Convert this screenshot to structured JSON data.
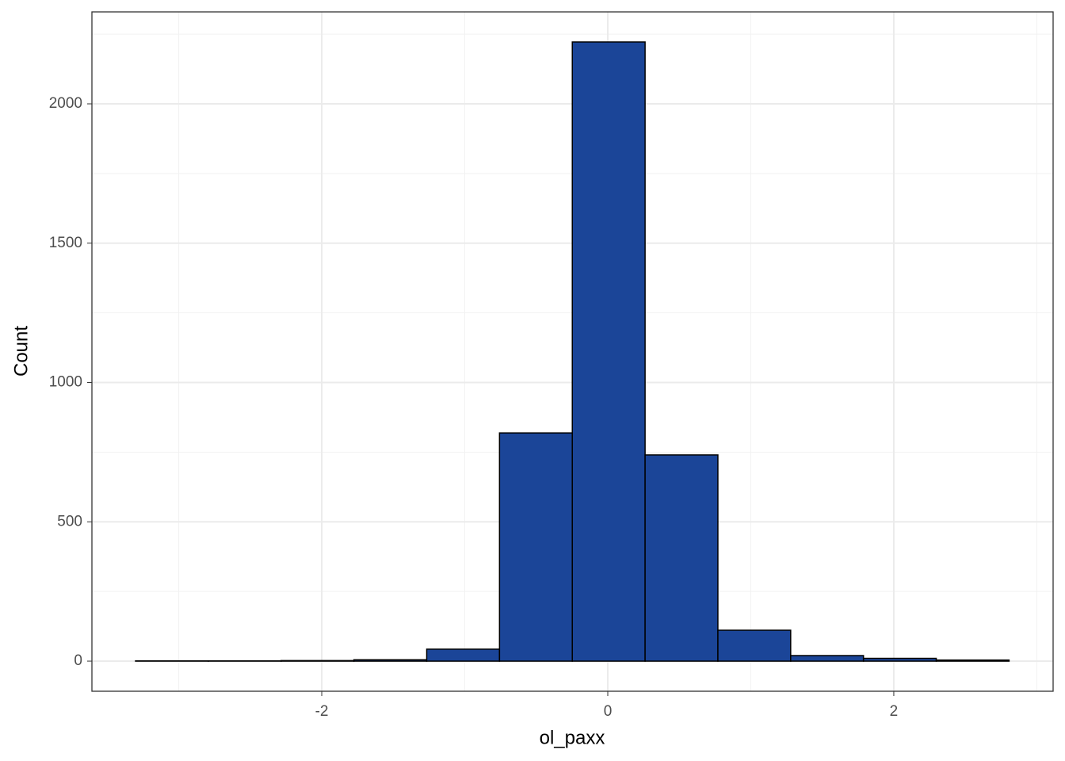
{
  "chart_data": {
    "type": "histogram",
    "x_label": "ol_paxx",
    "y_label": "Count",
    "bins": [
      -3.302,
      -2.793,
      -2.284,
      -1.775,
      -1.266,
      -0.757,
      -0.248,
      0.261,
      0.77,
      1.279,
      1.788,
      2.297,
      2.806
    ],
    "values": [
      1,
      1,
      2,
      5,
      43,
      819,
      2222,
      740,
      111,
      20,
      10,
      4
    ],
    "color": "#1b4598",
    "xlim": [
      -3.607,
      3.114
    ],
    "ylim": [
      -108,
      2330
    ],
    "xticks": [
      -2,
      0,
      2
    ],
    "yticks": [
      0,
      500,
      1000,
      1500,
      2000
    ],
    "x_minor_ticks": [
      -3,
      -1,
      1,
      3
    ],
    "y_minor_ticks": [
      250,
      750,
      1250,
      1750,
      2250
    ],
    "grid": true
  }
}
